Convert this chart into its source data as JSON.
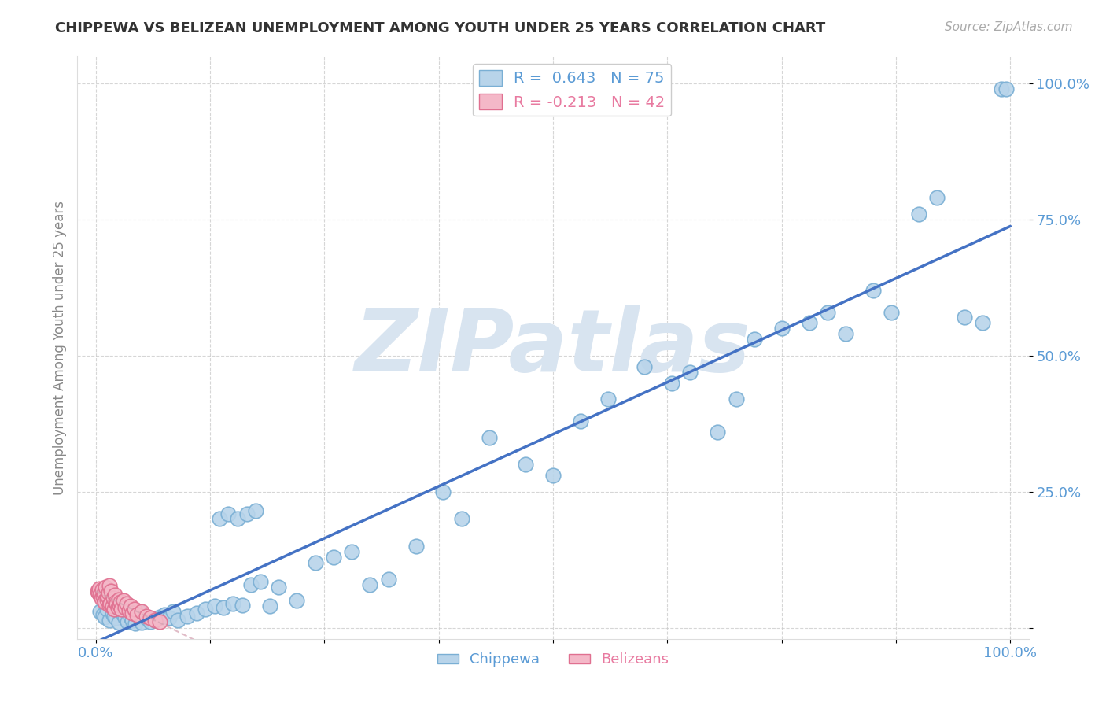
{
  "title": "CHIPPEWA VS BELIZEAN UNEMPLOYMENT AMONG YOUTH UNDER 25 YEARS CORRELATION CHART",
  "source": "Source: ZipAtlas.com",
  "ylabel": "Unemployment Among Youth under 25 years",
  "chippewa_R": 0.643,
  "chippewa_N": 75,
  "belizean_R": -0.213,
  "belizean_N": 42,
  "xlim": [
    -0.02,
    1.02
  ],
  "ylim": [
    -0.02,
    1.05
  ],
  "xtick_positions": [
    0.0,
    0.125,
    0.25,
    0.375,
    0.5,
    0.625,
    0.75,
    0.875,
    1.0
  ],
  "xtick_labels": [
    "0.0%",
    "",
    "",
    "",
    "",
    "",
    "",
    "",
    "100.0%"
  ],
  "ytick_positions": [
    0.0,
    0.25,
    0.5,
    0.75,
    1.0
  ],
  "ytick_labels": [
    "",
    "25.0%",
    "50.0%",
    "75.0%",
    "100.0%"
  ],
  "chippewa_color": "#b8d4ea",
  "chippewa_edge": "#7aafd4",
  "belizean_color": "#f4b8c8",
  "belizean_edge": "#e07090",
  "regression_chippewa_color": "#4472c4",
  "regression_belizean_color": "#d4a0b0",
  "background_color": "#ffffff",
  "watermark": "ZIPatlas",
  "watermark_color": "#d8e4f0",
  "chippewa_x": [
    0.005,
    0.008,
    0.01,
    0.012,
    0.015,
    0.018,
    0.02,
    0.022,
    0.025,
    0.028,
    0.03,
    0.032,
    0.035,
    0.038,
    0.04,
    0.043,
    0.045,
    0.048,
    0.05,
    0.055,
    0.06,
    0.065,
    0.07,
    0.075,
    0.08,
    0.085,
    0.09,
    0.1,
    0.11,
    0.12,
    0.13,
    0.14,
    0.15,
    0.16,
    0.17,
    0.18,
    0.19,
    0.2,
    0.22,
    0.24,
    0.26,
    0.28,
    0.3,
    0.32,
    0.35,
    0.38,
    0.4,
    0.43,
    0.47,
    0.5,
    0.53,
    0.56,
    0.6,
    0.63,
    0.65,
    0.68,
    0.7,
    0.72,
    0.75,
    0.78,
    0.8,
    0.82,
    0.85,
    0.87,
    0.9,
    0.92,
    0.95,
    0.97,
    0.99,
    0.995,
    0.135,
    0.145,
    0.155,
    0.165,
    0.175
  ],
  "chippewa_y": [
    0.03,
    0.025,
    0.02,
    0.035,
    0.015,
    0.028,
    0.022,
    0.018,
    0.01,
    0.032,
    0.025,
    0.018,
    0.012,
    0.02,
    0.015,
    0.008,
    0.025,
    0.03,
    0.01,
    0.018,
    0.012,
    0.015,
    0.02,
    0.025,
    0.018,
    0.03,
    0.015,
    0.022,
    0.028,
    0.035,
    0.04,
    0.038,
    0.045,
    0.042,
    0.08,
    0.085,
    0.04,
    0.075,
    0.05,
    0.12,
    0.13,
    0.14,
    0.08,
    0.09,
    0.15,
    0.25,
    0.2,
    0.35,
    0.3,
    0.28,
    0.38,
    0.42,
    0.48,
    0.45,
    0.47,
    0.36,
    0.42,
    0.53,
    0.55,
    0.56,
    0.58,
    0.54,
    0.62,
    0.58,
    0.76,
    0.79,
    0.57,
    0.56,
    0.99,
    0.99,
    0.2,
    0.21,
    0.2,
    0.21,
    0.215
  ],
  "belizean_x": [
    0.002,
    0.003,
    0.004,
    0.005,
    0.006,
    0.007,
    0.008,
    0.009,
    0.01,
    0.01,
    0.011,
    0.012,
    0.013,
    0.014,
    0.015,
    0.015,
    0.016,
    0.017,
    0.018,
    0.019,
    0.02,
    0.021,
    0.022,
    0.023,
    0.024,
    0.025,
    0.026,
    0.027,
    0.028,
    0.03,
    0.032,
    0.034,
    0.036,
    0.038,
    0.04,
    0.042,
    0.045,
    0.05,
    0.055,
    0.06,
    0.065,
    0.07
  ],
  "belizean_y": [
    0.068,
    0.065,
    0.072,
    0.06,
    0.055,
    0.07,
    0.058,
    0.063,
    0.05,
    0.048,
    0.075,
    0.052,
    0.058,
    0.065,
    0.042,
    0.078,
    0.045,
    0.068,
    0.04,
    0.055,
    0.035,
    0.06,
    0.048,
    0.045,
    0.038,
    0.052,
    0.042,
    0.048,
    0.035,
    0.05,
    0.038,
    0.045,
    0.032,
    0.04,
    0.028,
    0.035,
    0.025,
    0.03,
    0.022,
    0.018,
    0.015,
    0.012
  ]
}
